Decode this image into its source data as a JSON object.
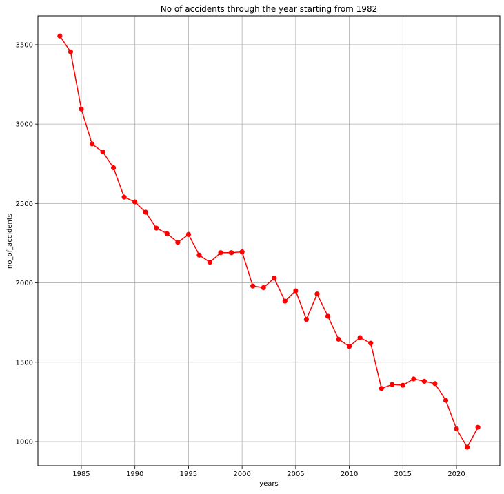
{
  "chart_data": {
    "type": "line",
    "title": "No of accidents through the year starting from 1982",
    "xlabel": "years",
    "ylabel": "no_of_accidents",
    "xlim": [
      1980.95,
      2024.05
    ],
    "ylim": [
      848,
      3682
    ],
    "xticks": [
      1985,
      1990,
      1995,
      2000,
      2005,
      2010,
      2015,
      2020
    ],
    "yticks": [
      1000,
      1500,
      2000,
      2500,
      3000,
      3500
    ],
    "grid": true,
    "legend": "none",
    "colors": {
      "line": "#ff0000",
      "marker": "#ff0000",
      "grid": "#b0b0b0",
      "axes": "#000000",
      "background": "#ffffff"
    },
    "series": [
      {
        "marker": "circle",
        "x": [
          1983,
          1984,
          1985,
          1986,
          1987,
          1988,
          1989,
          1990,
          1991,
          1992,
          1993,
          1994,
          1995,
          1996,
          1997,
          1998,
          1999,
          2000,
          2001,
          2002,
          2003,
          2004,
          2005,
          2006,
          2007,
          2008,
          2009,
          2010,
          2011,
          2012,
          2013,
          2014,
          2015,
          2016,
          2017,
          2018,
          2019,
          2020,
          2021,
          2022
        ],
        "y": [
          3555,
          3455,
          3095,
          2875,
          2825,
          2725,
          2540,
          2510,
          2445,
          2345,
          2310,
          2255,
          2305,
          2175,
          2130,
          2190,
          2190,
          2195,
          1980,
          1970,
          2030,
          1885,
          1950,
          1770,
          1930,
          1790,
          1645,
          1600,
          1655,
          1620,
          1335,
          1360,
          1355,
          1395,
          1380,
          1365,
          1260,
          1080,
          965,
          1090
        ]
      }
    ]
  }
}
